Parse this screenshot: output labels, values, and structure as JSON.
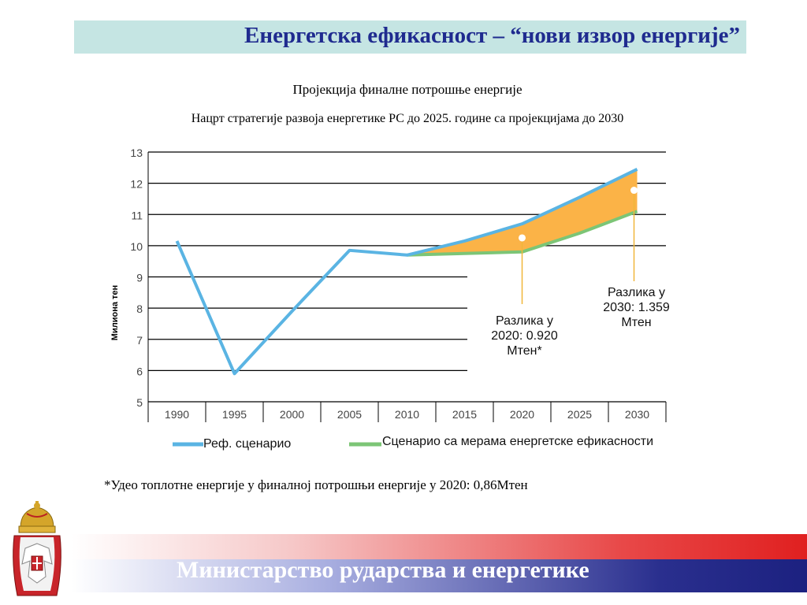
{
  "header": {
    "title": "Енергетска ефикасност – “нови извор енергије”"
  },
  "subtitle_1": "Пројекција финалне потрошње енергије",
  "subtitle_2": "Нацрт стратегије развоја енергетике РС до 2025. године са пројекцијама до 2030",
  "footnote": "*Удео топлотне енергије у финалној потрошњи енергије у 2020: 0,86Мтен",
  "footer": {
    "ministry": "Министарство рударства и енергетике"
  },
  "colors": {
    "title_text": "#1f2b8f",
    "title_bg": "#c5e5e3",
    "ref_line": "#5ab4e3",
    "ee_line": "#7cc576",
    "gap_fill": "#fbb347",
    "annotation_line": "#f0b63a"
  },
  "chart_data": {
    "type": "line",
    "ylabel": "Милиона тен",
    "xlabel": "",
    "categories": [
      "1990",
      "1995",
      "2000",
      "2005",
      "2010",
      "2015",
      "2020",
      "2025",
      "2030"
    ],
    "ylim": [
      5,
      13
    ],
    "yticks": [
      "5",
      "6",
      "7",
      "8",
      "9",
      "10",
      "11",
      "12",
      "13"
    ],
    "grid": true,
    "legend_position": "bottom",
    "series": [
      {
        "name": "Реф. сценарио",
        "values": [
          10.15,
          5.9,
          7.9,
          9.85,
          9.7,
          10.15,
          10.7,
          11.55,
          12.45
        ]
      },
      {
        "name": "Сценарио са мерама енергетске ефикасности",
        "values": [
          null,
          null,
          null,
          null,
          9.7,
          9.75,
          9.8,
          10.4,
          11.1
        ]
      }
    ],
    "annotations": [
      {
        "year": "2020",
        "text_lines": [
          "Разлика у",
          "2020: 0.920",
          "Мтен*"
        ]
      },
      {
        "year": "2030",
        "text_lines": [
          "Разлика у",
          "2030: 1.359",
          "Мтен"
        ]
      }
    ]
  }
}
